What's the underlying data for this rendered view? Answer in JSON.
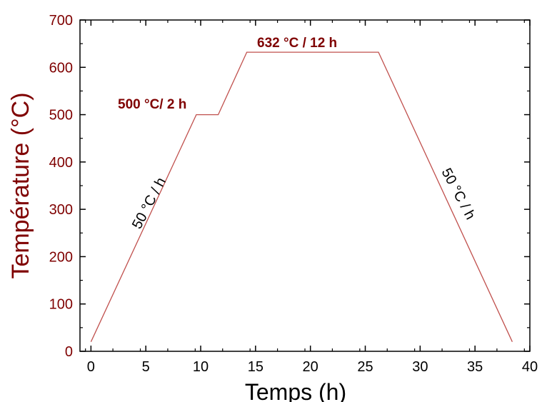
{
  "chart_data": {
    "type": "line",
    "title": "",
    "xlabel": "Temps (h)",
    "ylabel": "Température (°C)",
    "xlim": [
      -1,
      40
    ],
    "ylim": [
      0,
      700
    ],
    "x_ticks": [
      "0",
      "5",
      "10",
      "15",
      "20",
      "25",
      "30",
      "35",
      "40"
    ],
    "y_ticks": [
      "0",
      "100",
      "200",
      "300",
      "400",
      "500",
      "600",
      "700"
    ],
    "grid": false,
    "line_color": "#c0504d",
    "label_color": "#7f0000",
    "series": [
      {
        "x": [
          0,
          9.6,
          11.6,
          14.2,
          26.2,
          38.4
        ],
        "y": [
          20,
          500,
          500,
          632,
          632,
          20
        ]
      }
    ],
    "annotations": {
      "hold1": "500 °C/ 2 h",
      "hold2": "632 °C / 12 h",
      "heat_rate": "50 °C / h",
      "cool_rate": "50 °C / h"
    }
  }
}
